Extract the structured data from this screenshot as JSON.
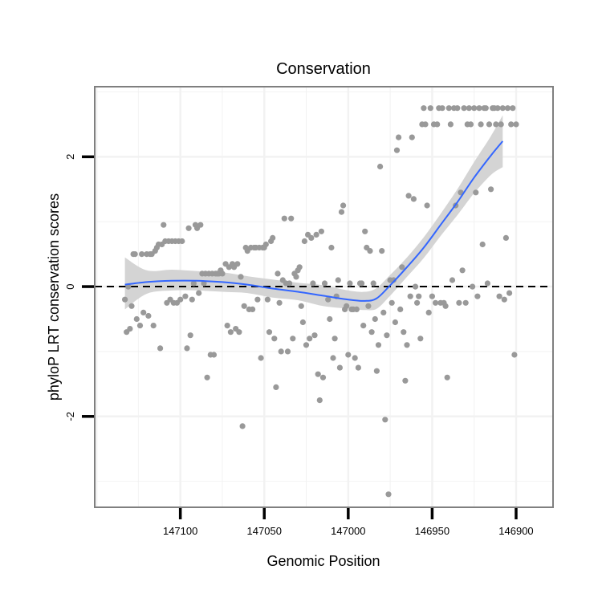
{
  "chart_data": {
    "type": "scatter",
    "title": "Conservation",
    "xlabel": "Genomic Position",
    "ylabel": "phyloP LRT conservation scores",
    "x_reversed": true,
    "xlim": [
      147151,
      146878
    ],
    "ylim": [
      -3.4,
      3.08
    ],
    "x_ticks": [
      147100,
      147050,
      147000,
      146950,
      146900
    ],
    "x_tick_labels": [
      "147100",
      "147050",
      "147000",
      "146950",
      "146900"
    ],
    "y_ticks": [
      -2,
      0,
      2
    ],
    "y_tick_labels": [
      "-2",
      "0",
      "2"
    ],
    "grid": true,
    "reference_line": {
      "y": 0,
      "style": "dashed"
    },
    "colors": {
      "points": "#999999",
      "smooth": "#3366ff",
      "band": "#d4d4d4",
      "grid": "#f2f2f2",
      "panel_border": "#7f7f7f",
      "reference": "#000000"
    },
    "points": [
      [
        147133,
        -0.2
      ],
      [
        147132,
        -0.7
      ],
      [
        147131,
        0
      ],
      [
        147130,
        -0.65
      ],
      [
        147129,
        -0.3
      ],
      [
        147128,
        0.5
      ],
      [
        147127,
        0.5
      ],
      [
        147126,
        -0.5
      ],
      [
        147124,
        -0.6
      ],
      [
        147123,
        0.5
      ],
      [
        147122,
        -0.4
      ],
      [
        147120,
        0.5
      ],
      [
        147119,
        -0.45
      ],
      [
        147118,
        0.5
      ],
      [
        147117,
        0.5
      ],
      [
        147116,
        -0.6
      ],
      [
        147115,
        0.55
      ],
      [
        147114,
        0.6
      ],
      [
        147113,
        0.65
      ],
      [
        147112,
        -0.95
      ],
      [
        147111,
        0.65
      ],
      [
        147110,
        0.95
      ],
      [
        147109,
        0.7
      ],
      [
        147108,
        -0.25
      ],
      [
        147107,
        0.7
      ],
      [
        147106,
        -0.2
      ],
      [
        147105,
        0.7
      ],
      [
        147104,
        -0.25
      ],
      [
        147103,
        0.7
      ],
      [
        147102,
        -0.25
      ],
      [
        147101,
        0.7
      ],
      [
        147100,
        -0.2
      ],
      [
        147099,
        0.7
      ],
      [
        147097,
        -0.15
      ],
      [
        147096,
        -0.95
      ],
      [
        147095,
        0.9
      ],
      [
        147094,
        -0.75
      ],
      [
        147093,
        -0.2
      ],
      [
        147092,
        0.05
      ],
      [
        147091,
        0.95
      ],
      [
        147090,
        0.9
      ],
      [
        147089,
        -0.1
      ],
      [
        147088,
        0.95
      ],
      [
        147087,
        0.2
      ],
      [
        147086,
        0.05
      ],
      [
        147085,
        0.2
      ],
      [
        147084,
        -1.4
      ],
      [
        147083,
        0.2
      ],
      [
        147082,
        -1.05
      ],
      [
        147081,
        0.2
      ],
      [
        147080,
        -1.05
      ],
      [
        147079,
        0.2
      ],
      [
        147078,
        0.2
      ],
      [
        147077,
        0.2
      ],
      [
        147076,
        0.25
      ],
      [
        147075,
        0.2
      ],
      [
        147073,
        0.35
      ],
      [
        147072,
        -0.6
      ],
      [
        147071,
        0.3
      ],
      [
        147070,
        -0.7
      ],
      [
        147069,
        0.35
      ],
      [
        147068,
        0.3
      ],
      [
        147067,
        -0.65
      ],
      [
        147066,
        0.35
      ],
      [
        147065,
        -0.7
      ],
      [
        147064,
        0.15
      ],
      [
        147063,
        -2.15
      ],
      [
        147062,
        -0.3
      ],
      [
        147061,
        0.6
      ],
      [
        147060,
        0.55
      ],
      [
        147059,
        -0.35
      ],
      [
        147058,
        0.6
      ],
      [
        147057,
        -0.35
      ],
      [
        147056,
        0.6
      ],
      [
        147055,
        0.6
      ],
      [
        147054,
        -0.2
      ],
      [
        147053,
        0.6
      ],
      [
        147052,
        -1.1
      ],
      [
        147051,
        0.6
      ],
      [
        147050,
        0.6
      ],
      [
        147049,
        0.65
      ],
      [
        147048,
        -0.2
      ],
      [
        147047,
        -0.7
      ],
      [
        147046,
        0.7
      ],
      [
        147045,
        0.75
      ],
      [
        147044,
        -0.8
      ],
      [
        147043,
        -1.55
      ],
      [
        147042,
        0.2
      ],
      [
        147041,
        -0.25
      ],
      [
        147040,
        -1.0
      ],
      [
        147039,
        0.1
      ],
      [
        147038,
        1.05
      ],
      [
        147037,
        0.05
      ],
      [
        147036,
        -1.0
      ],
      [
        147035,
        0.05
      ],
      [
        147034,
        1.05
      ],
      [
        147033,
        -0.8
      ],
      [
        147032,
        0.2
      ],
      [
        147031,
        0.15
      ],
      [
        147030,
        0.25
      ],
      [
        147029,
        0.3
      ],
      [
        147028,
        -0.3
      ],
      [
        147027,
        -0.55
      ],
      [
        147026,
        0.7
      ],
      [
        147025,
        -0.9
      ],
      [
        147024,
        0.8
      ],
      [
        147023,
        -0.8
      ],
      [
        147022,
        0.75
      ],
      [
        147021,
        0.05
      ],
      [
        147020,
        -0.75
      ],
      [
        147019,
        0.8
      ],
      [
        147018,
        -1.35
      ],
      [
        147017,
        -1.75
      ],
      [
        147016,
        0.85
      ],
      [
        147015,
        -1.4
      ],
      [
        147014,
        0.05
      ],
      [
        147012,
        -0.2
      ],
      [
        147011,
        -0.5
      ],
      [
        147010,
        0.6
      ],
      [
        147009,
        -1.1
      ],
      [
        147008,
        -0.8
      ],
      [
        147007,
        -0.15
      ],
      [
        147006,
        0.1
      ],
      [
        147005,
        -1.25
      ],
      [
        147004,
        1.15
      ],
      [
        147003,
        1.25
      ],
      [
        147002,
        -0.35
      ],
      [
        147001,
        -0.3
      ],
      [
        147000,
        -1.05
      ],
      [
        146999,
        0.05
      ],
      [
        146998,
        -0.35
      ],
      [
        146997,
        -0.35
      ],
      [
        146996,
        -1.1
      ],
      [
        146995,
        -0.35
      ],
      [
        146994,
        -1.25
      ],
      [
        146993,
        0.05
      ],
      [
        146992,
        0.05
      ],
      [
        146991,
        -0.6
      ],
      [
        146990,
        0.85
      ],
      [
        146989,
        0.6
      ],
      [
        146988,
        -0.3
      ],
      [
        146987,
        0.55
      ],
      [
        146986,
        -0.7
      ],
      [
        146985,
        0.05
      ],
      [
        146984,
        -0.5
      ],
      [
        146983,
        -1.3
      ],
      [
        146982,
        -0.9
      ],
      [
        146981,
        1.85
      ],
      [
        146980,
        0.55
      ],
      [
        146979,
        -0.4
      ],
      [
        146978,
        -2.05
      ],
      [
        146977,
        -0.75
      ],
      [
        146976,
        -3.2
      ],
      [
        146975,
        0.1
      ],
      [
        146974,
        -0.25
      ],
      [
        146973,
        0.1
      ],
      [
        146972,
        -0.55
      ],
      [
        146971,
        2.1
      ],
      [
        146970,
        2.3
      ],
      [
        146969,
        -0.35
      ],
      [
        146968,
        0.3
      ],
      [
        146967,
        -0.7
      ],
      [
        146966,
        -1.45
      ],
      [
        146965,
        -0.9
      ],
      [
        146964,
        1.4
      ],
      [
        146963,
        -0.15
      ],
      [
        146962,
        2.3
      ],
      [
        146961,
        1.35
      ],
      [
        146960,
        0
      ],
      [
        146959,
        -0.25
      ],
      [
        146958,
        -0.15
      ],
      [
        146957,
        -0.8
      ],
      [
        146956,
        2.5
      ],
      [
        146955,
        2.75
      ],
      [
        146954,
        2.5
      ],
      [
        146953,
        1.25
      ],
      [
        146952,
        -0.4
      ],
      [
        146951,
        2.75
      ],
      [
        146950,
        -0.15
      ],
      [
        146949,
        2.5
      ],
      [
        146948,
        -0.25
      ],
      [
        146947,
        2.5
      ],
      [
        146946,
        2.75
      ],
      [
        146945,
        -0.25
      ],
      [
        146944,
        2.75
      ],
      [
        146943,
        -0.25
      ],
      [
        146942,
        -0.3
      ],
      [
        146941,
        -1.4
      ],
      [
        146940,
        2.75
      ],
      [
        146939,
        2.5
      ],
      [
        146938,
        0.1
      ],
      [
        146937,
        2.75
      ],
      [
        146936,
        1.25
      ],
      [
        146935,
        2.75
      ],
      [
        146934,
        -0.25
      ],
      [
        146933,
        1.45
      ],
      [
        146932,
        0.25
      ],
      [
        146931,
        2.75
      ],
      [
        146930,
        -0.25
      ],
      [
        146929,
        2.5
      ],
      [
        146928,
        2.75
      ],
      [
        146927,
        2.5
      ],
      [
        146926,
        0
      ],
      [
        146925,
        2.75
      ],
      [
        146924,
        1.45
      ],
      [
        146923,
        -0.15
      ],
      [
        146922,
        2.75
      ],
      [
        146921,
        2.5
      ],
      [
        146920,
        0.65
      ],
      [
        146919,
        2.75
      ],
      [
        146918,
        2.75
      ],
      [
        146917,
        0.05
      ],
      [
        146916,
        2.5
      ],
      [
        146915,
        1.5
      ],
      [
        146914,
        2.75
      ],
      [
        146913,
        2.75
      ],
      [
        146912,
        2.5
      ],
      [
        146911,
        2.75
      ],
      [
        146910,
        -0.15
      ],
      [
        146909,
        2.5
      ],
      [
        146908,
        2.75
      ],
      [
        146907,
        -0.2
      ],
      [
        146906,
        0.75
      ],
      [
        146905,
        2.75
      ],
      [
        146904,
        -0.1
      ],
      [
        146903,
        2.5
      ],
      [
        146902,
        2.75
      ],
      [
        146901,
        -1.05
      ],
      [
        146900,
        2.5
      ]
    ],
    "smooth": [
      [
        147133,
        0.03
      ],
      [
        147120,
        0.07
      ],
      [
        147105,
        0.09
      ],
      [
        147090,
        0.09
      ],
      [
        147075,
        0.07
      ],
      [
        147060,
        0.03
      ],
      [
        147045,
        -0.03
      ],
      [
        147030,
        -0.08
      ],
      [
        147015,
        -0.14
      ],
      [
        147000,
        -0.2
      ],
      [
        146990,
        -0.22
      ],
      [
        146983,
        -0.18
      ],
      [
        146975,
        0.02
      ],
      [
        146965,
        0.3
      ],
      [
        146955,
        0.6
      ],
      [
        146945,
        0.95
      ],
      [
        146935,
        1.3
      ],
      [
        146925,
        1.68
      ],
      [
        146915,
        2.02
      ],
      [
        146908,
        2.24
      ]
    ],
    "band": [
      [
        147133,
        0.45,
        -0.35
      ],
      [
        147120,
        0.25,
        -0.11
      ],
      [
        147105,
        0.26,
        -0.06
      ],
      [
        147090,
        0.24,
        -0.06
      ],
      [
        147075,
        0.22,
        -0.08
      ],
      [
        147060,
        0.16,
        -0.1
      ],
      [
        147045,
        0.11,
        -0.17
      ],
      [
        147030,
        0.06,
        -0.21
      ],
      [
        147015,
        0.02,
        -0.3
      ],
      [
        147000,
        -0.06,
        -0.34
      ],
      [
        146990,
        -0.08,
        -0.36
      ],
      [
        146983,
        -0.02,
        -0.34
      ],
      [
        146975,
        0.18,
        -0.14
      ],
      [
        146965,
        0.45,
        0.15
      ],
      [
        146955,
        0.76,
        0.44
      ],
      [
        146945,
        1.12,
        0.78
      ],
      [
        146935,
        1.5,
        1.1
      ],
      [
        146925,
        1.92,
        1.44
      ],
      [
        146915,
        2.32,
        1.72
      ],
      [
        146908,
        2.64,
        1.84
      ]
    ]
  }
}
